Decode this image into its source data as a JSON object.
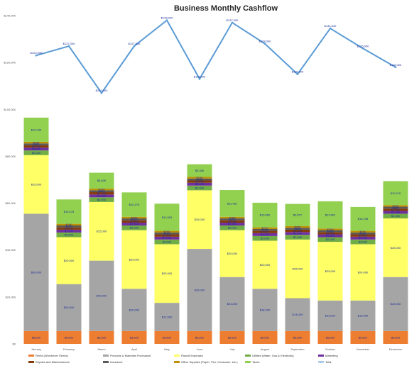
{
  "chart_data": {
    "type": "bar",
    "stacked": true,
    "title": "Business Monthly Cashflow",
    "y_ticks": [
      "$0",
      "$20,000",
      "$40,000",
      "$60,000",
      "$80,000",
      "$100,000",
      "$120,000",
      "$140,000"
    ],
    "ylim": [
      0,
      140000
    ],
    "grid": false,
    "legend_position": "bottom",
    "categories": [
      "January",
      "February",
      "March",
      "April",
      "May",
      "June",
      "July",
      "August",
      "September",
      "October",
      "November",
      "December"
    ],
    "series": [
      {
        "name": "Rents (Whichever Stores)",
        "color": "#ed7d31",
        "values": [
          5500,
          5500,
          5500,
          5500,
          5500,
          5500,
          5500,
          5500,
          5500,
          5500,
          5500,
          5500
        ],
        "labels": [
          "$5,500",
          "$5,500",
          "$5,500",
          "$5,500",
          "$5,500",
          "$5,500",
          "$5,500",
          "$5,500",
          "$5,500",
          "$5,500",
          "$5,500",
          "$5,500"
        ]
      },
      {
        "name": "Products & Materials Purchased",
        "color": "#a5a5a5",
        "values": [
          50000,
          20000,
          30000,
          18000,
          12000,
          35000,
          23000,
          18000,
          14000,
          13000,
          13000,
          23000
        ],
        "labels": [
          "$50,000",
          "$20,000",
          "$30,000",
          "$18,000",
          "$12,000",
          "$35,000",
          "$23,000",
          "$18,000",
          "$14,000",
          "$13,000",
          "$13,000",
          "$23,000"
        ]
      },
      {
        "name": "Payroll Expenses",
        "color": "#ffff66",
        "values": [
          25000,
          20000,
          25000,
          25000,
          25000,
          25000,
          20000,
          20500,
          25000,
          25000,
          24000,
          25000
        ],
        "labels": [
          "$25,000",
          "$20,000",
          "$25,000",
          "$25,000",
          "$25,000",
          "$25,000",
          "$20,000",
          "$20,500",
          "$25,000",
          "$25,000",
          "$24,000",
          "$25,000"
        ]
      },
      {
        "name": "Utilities (Water, Gas & Electricity)",
        "color": "#70ad47",
        "values": [
          2000,
          2000,
          2000,
          2000,
          2000,
          2000,
          2000,
          2000,
          2000,
          2000,
          2000,
          2000
        ],
        "labels": [
          "$2,000",
          "$2,000",
          "$2,000",
          "$2,000",
          "$2,000",
          "$2,000",
          "$2,000",
          "$2,000",
          "$2,000",
          "$2,000",
          "$2,000",
          "$2,000"
        ]
      },
      {
        "name": "Marketing",
        "color": "#7030a0",
        "values": [
          1200,
          1200,
          1200,
          1200,
          1200,
          1200,
          1200,
          1200,
          1200,
          1200,
          1200,
          1200
        ],
        "labels": [
          "$1,200",
          "$1,200",
          "$1,200",
          "$1,200",
          "$1,200",
          "$1,200",
          "$1,200",
          "$1,200",
          "$1,200",
          "$1,200",
          "$1,200",
          "$1,200"
        ]
      },
      {
        "name": "Repairs and Maintenances",
        "color": "#843c0c",
        "values": [
          1000,
          1000,
          1000,
          1000,
          1000,
          1000,
          1000,
          1000,
          1000,
          1000,
          1000,
          1000
        ],
        "labels": [
          "$1,000",
          "$1,000",
          "$1,000",
          "$1,000",
          "$1,000",
          "$1,000",
          "$1,000",
          "$1,000",
          "$1,000",
          "$1,000",
          "$1,000",
          "$1,000"
        ]
      },
      {
        "name": "Insurance",
        "color": "#595959",
        "values": [
          800,
          800,
          800,
          800,
          800,
          800,
          800,
          800,
          800,
          800,
          800,
          800
        ],
        "labels": [
          "$800",
          "$800",
          "$800",
          "$800",
          "$800",
          "$800",
          "$800",
          "$800",
          "$800",
          "$800",
          "$800",
          "$800"
        ]
      },
      {
        "name": "Office Supplies (Paper, Pen, Consumer, etc.)",
        "color": "#bf9000",
        "values": [
          700,
          700,
          700,
          700,
          700,
          700,
          700,
          700,
          700,
          700,
          700,
          700
        ],
        "labels": [
          "$700",
          "$700",
          "$700",
          "$700",
          "$700",
          "$700",
          "$700",
          "$700",
          "$700",
          "$700",
          "$700",
          "$700"
        ]
      },
      {
        "name": "Taxes",
        "color": "#92d050",
        "values": [
          10300,
          10400,
          6800,
          10400,
          11600,
          5400,
          11400,
          10500,
          9500,
          11600,
          10200,
          10200
        ],
        "labels": [
          "$10,345",
          "$10,478",
          "$6,826",
          "$10,478",
          "$11,663",
          "$5,356",
          "$11,481",
          "$10,580",
          "$9,527",
          "$11,663",
          "$10,195",
          "$10,215"
        ]
      }
    ],
    "line_series": {
      "name": "Total",
      "color": "#5b9bd5",
      "values": [
        123000,
        127000,
        107000,
        127000,
        138000,
        113000,
        137000,
        128000,
        115000,
        134540,
        126000,
        118000
      ],
      "labels": [
        "$123,000",
        "$127,000",
        "$107,000",
        "$127,000",
        "$138,000",
        "$113,000",
        "$137,000",
        "$128,000",
        "$115,000",
        "$134,540",
        "$126,000",
        "$118,000"
      ]
    }
  }
}
